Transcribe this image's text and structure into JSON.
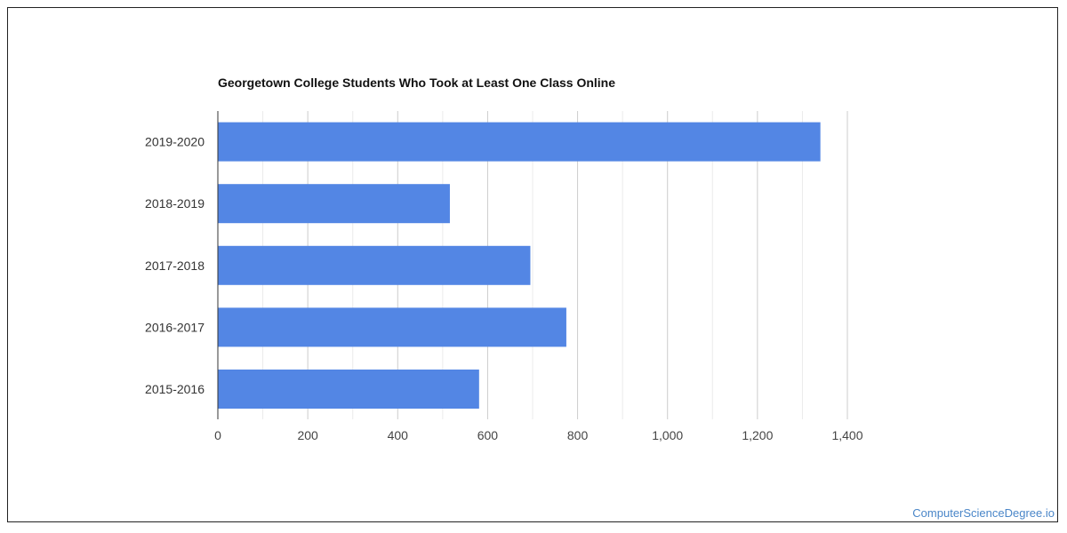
{
  "chart_data": {
    "type": "bar",
    "orientation": "horizontal",
    "title": "Georgetown College Students Who Took at Least One Class Online",
    "categories": [
      "2019-2020",
      "2018-2019",
      "2017-2018",
      "2016-2017",
      "2015-2016"
    ],
    "values": [
      1340,
      516,
      695,
      775,
      581
    ],
    "xlim": [
      0,
      1400
    ],
    "xticks": [
      0,
      200,
      400,
      600,
      800,
      1000,
      1200,
      1400
    ],
    "xtick_labels": [
      "0",
      "200",
      "400",
      "600",
      "800",
      "1,000",
      "1,200",
      "1,400"
    ],
    "grid": true,
    "bar_color": "#5386e4",
    "xlabel": "",
    "ylabel": ""
  },
  "watermark": "ComputerScienceDegree.io"
}
